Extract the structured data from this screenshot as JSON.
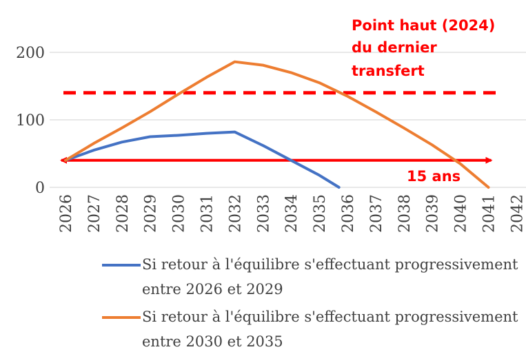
{
  "chart_data": {
    "type": "line",
    "title": "",
    "xlabel": "",
    "ylabel": "",
    "x": [
      "2026",
      "2027",
      "2028",
      "2029",
      "2030",
      "2031",
      "2032",
      "2033",
      "2034",
      "2035",
      "2036",
      "2037",
      "2038",
      "2039",
      "2040",
      "2041",
      "2042"
    ],
    "ylim": [
      0,
      200
    ],
    "yticks": [
      "0",
      "100",
      "200"
    ],
    "grid": "horizontal",
    "legend_position": "bottom",
    "series": [
      {
        "name": "Si retour à l'équilibre s'effectuant progressivement entre 2026 et 2029",
        "color": "#4472c4",
        "x": [
          "2026",
          "2027",
          "2028",
          "2029",
          "2030",
          "2031",
          "2032",
          "2033",
          "2034",
          "2035",
          "2035.7"
        ],
        "values": [
          40,
          55,
          67,
          75,
          77,
          80,
          82,
          62,
          40,
          18,
          0
        ]
      },
      {
        "name": "Si retour à l'équilibre s'effectuant progressivement entre 2030 et 2035",
        "color": "#ed7d31",
        "x": [
          "2026",
          "2027",
          "2028",
          "2029",
          "2030",
          "2031",
          "2032",
          "2033",
          "2034",
          "2035",
          "2036",
          "2037",
          "2038",
          "2039",
          "2040",
          "2041"
        ],
        "values": [
          40,
          65,
          88,
          112,
          138,
          163,
          186,
          181,
          170,
          155,
          135,
          112,
          88,
          63,
          35,
          0
        ]
      }
    ],
    "annotations": {
      "peak_line": {
        "label_lines": [
          "Point haut (2024)",
          "du dernier",
          "transfert"
        ],
        "value": 140,
        "color": "#ff0000"
      },
      "span_arrow": {
        "label": "15 ans",
        "value": 40,
        "from": "2026",
        "to": "2041",
        "color": "#ff0000"
      }
    }
  }
}
